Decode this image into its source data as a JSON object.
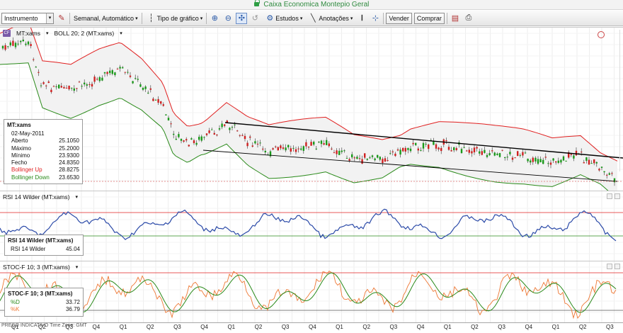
{
  "window": {
    "title": "Caixa Economica Montepio Geral"
  },
  "toolbar": {
    "instrument_placeholder": "Instrumento",
    "period_label": "Semanal, Automático",
    "chart_type_label": "Tipo de gráfico",
    "studies_label": "Estudos",
    "annotations_label": "Anotações",
    "sell_label": "Vender",
    "buy_label": "Comprar"
  },
  "main_panel": {
    "symbol_label": "MT:xams",
    "indicator_label": "BOLL 20; 2 (MT:xams)",
    "info": {
      "title": "MT:xams",
      "date": "02-May-2011",
      "rows": [
        {
          "label": "Aberto",
          "value": "25.1050",
          "color": "#111111"
        },
        {
          "label": "Máximo",
          "value": "25.2000",
          "color": "#111111"
        },
        {
          "label": "Mínimo",
          "value": "23.9300",
          "color": "#111111"
        },
        {
          "label": "Fecho",
          "value": "24.8350",
          "color": "#111111"
        },
        {
          "label": "Bollinger Up",
          "value": "28.8275",
          "color": "#e02020"
        },
        {
          "label": "Bollinger Down",
          "value": "23.6530",
          "color": "#2a8a1a"
        }
      ]
    }
  },
  "rsi_panel": {
    "header_label": "RSI 14 Wilder (MT:xams)",
    "info_title": "RSI 14 Wilder (MT:xams)",
    "info_label": "RSI 14 Wilder",
    "info_value": "45.04"
  },
  "stoc_panel": {
    "header_label": "STOC-F 10; 3 (MT:xams)",
    "info_title": "STOC-F 10; 3 (MT:xams)",
    "d_label": "%D",
    "d_value": "33.72",
    "k_label": "%K",
    "k_value": "36.79"
  },
  "xaxis": {
    "timezone_note": "PREÇO INDICATIVO   Time Zone: GMT",
    "ticks": [
      "Q1",
      "Q2",
      "Q3",
      "Q4",
      "Q1",
      "Q2",
      "Q3",
      "Q4",
      "Q1",
      "Q2",
      "Q3",
      "Q4",
      "Q1",
      "Q2",
      "Q3",
      "Q4",
      "Q1",
      "Q2",
      "Q3",
      "Q4",
      "Q1",
      "Q2",
      "Q3"
    ]
  },
  "colors": {
    "boll_up": "#e02020",
    "boll_down": "#2a8a1a",
    "rsi_line": "#2b4aa8",
    "stoc_k": "#ee7733",
    "stoc_d": "#2a8a1a",
    "trendline": "#000000",
    "candle_up": "#1a9a1a",
    "candle_down": "#d02020"
  }
}
